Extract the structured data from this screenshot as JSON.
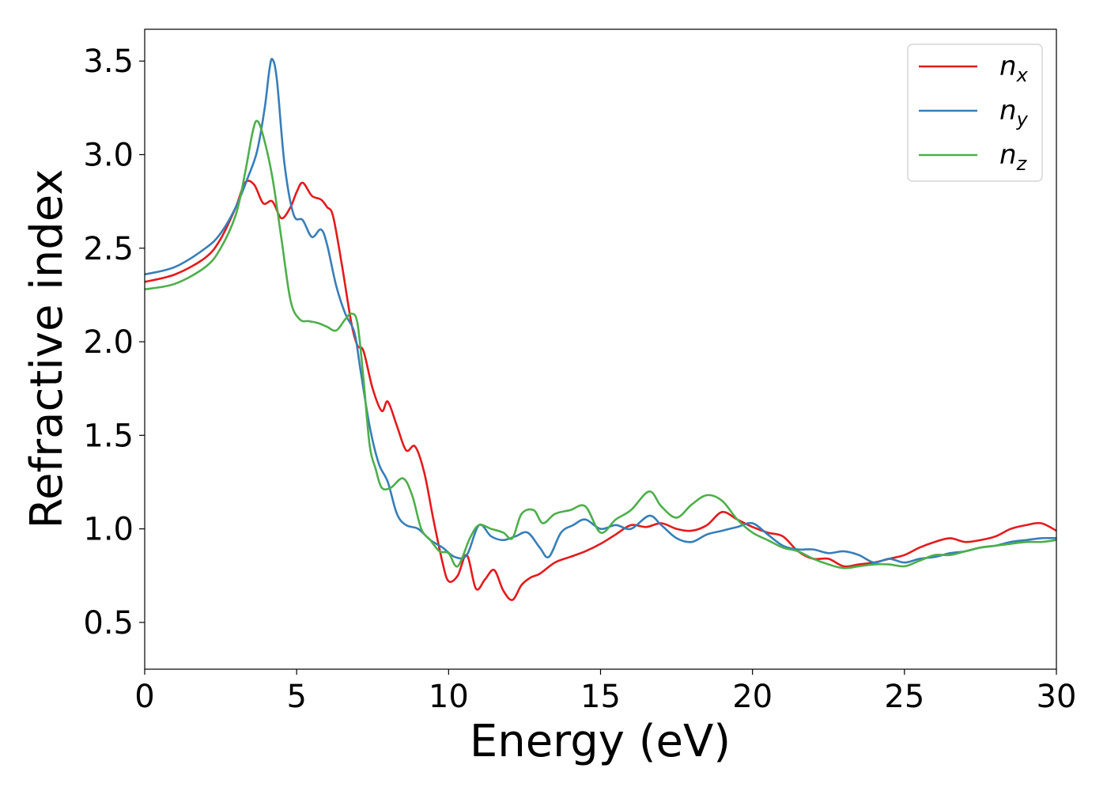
{
  "chart_data": {
    "type": "line",
    "title": "",
    "xlabel": "Energy (eV)",
    "ylabel": "Refractive index",
    "xlim": [
      0,
      30
    ],
    "ylim": [
      0.25,
      3.67
    ],
    "xticks": [
      0,
      5,
      10,
      15,
      20,
      25,
      30
    ],
    "xtick_labels": [
      "0",
      "5",
      "10",
      "15",
      "20",
      "25",
      "30"
    ],
    "yticks": [
      0.5,
      1.0,
      1.5,
      2.0,
      2.5,
      3.0,
      3.5
    ],
    "ytick_labels": [
      "0.5",
      "1.0",
      "1.5",
      "2.0",
      "2.5",
      "3.0",
      "3.5"
    ],
    "grid": false,
    "legend_position": "top-right",
    "series": [
      {
        "name": "n",
        "subscript": "x",
        "color": "#e41a1c",
        "x": [
          0,
          1,
          2,
          2.5,
          3,
          3.3,
          3.6,
          3.9,
          4.2,
          4.5,
          4.8,
          5.0,
          5.2,
          5.5,
          5.8,
          6.0,
          6.2,
          6.5,
          6.8,
          7.0,
          7.2,
          7.5,
          7.8,
          8.0,
          8.3,
          8.6,
          8.9,
          9.2,
          9.5,
          9.8,
          10.0,
          10.3,
          10.6,
          10.9,
          11.2,
          11.5,
          11.8,
          12.1,
          12.4,
          12.7,
          13.0,
          13.5,
          14.0,
          14.5,
          15.0,
          15.5,
          16.0,
          16.5,
          17.0,
          17.5,
          18.0,
          18.5,
          19.0,
          19.5,
          20.0,
          20.5,
          21.0,
          21.5,
          22.0,
          22.5,
          23.0,
          23.5,
          24.0,
          24.5,
          25.0,
          25.5,
          26.0,
          26.5,
          27.0,
          27.5,
          28.0,
          28.5,
          29.0,
          29.5,
          30.0
        ],
        "y": [
          2.32,
          2.36,
          2.45,
          2.55,
          2.72,
          2.85,
          2.84,
          2.74,
          2.75,
          2.66,
          2.72,
          2.8,
          2.85,
          2.78,
          2.76,
          2.72,
          2.67,
          2.4,
          2.1,
          1.98,
          1.95,
          1.75,
          1.63,
          1.68,
          1.55,
          1.42,
          1.44,
          1.3,
          1.05,
          0.82,
          0.72,
          0.75,
          0.86,
          0.68,
          0.73,
          0.78,
          0.67,
          0.62,
          0.7,
          0.74,
          0.76,
          0.82,
          0.85,
          0.88,
          0.92,
          0.97,
          1.02,
          1.01,
          1.03,
          1.0,
          0.99,
          1.02,
          1.09,
          1.05,
          1.01,
          0.98,
          0.96,
          0.88,
          0.84,
          0.84,
          0.8,
          0.81,
          0.82,
          0.84,
          0.86,
          0.9,
          0.93,
          0.95,
          0.93,
          0.94,
          0.96,
          1.0,
          1.02,
          1.03,
          0.99
        ]
      },
      {
        "name": "n",
        "subscript": "y",
        "color": "#377eb8",
        "x": [
          0,
          1,
          2,
          2.5,
          3,
          3.4,
          3.7,
          3.95,
          4.1,
          4.2,
          4.35,
          4.6,
          4.9,
          5.2,
          5.5,
          5.8,
          6.0,
          6.3,
          6.6,
          6.9,
          7.1,
          7.4,
          7.7,
          8.0,
          8.3,
          8.6,
          9.0,
          9.4,
          9.8,
          10.2,
          10.6,
          11.0,
          11.4,
          11.8,
          12.2,
          12.6,
          13.0,
          13.3,
          13.7,
          14.1,
          14.5,
          15.0,
          15.5,
          16.0,
          16.6,
          17.0,
          17.5,
          18.0,
          18.5,
          19.0,
          19.5,
          20.0,
          20.5,
          21.0,
          21.5,
          22.0,
          22.5,
          23.0,
          23.5,
          24.0,
          24.5,
          25.0,
          25.5,
          26.0,
          26.5,
          27.0,
          27.5,
          28.0,
          28.5,
          29.0,
          29.5,
          30.0
        ],
        "y": [
          2.36,
          2.4,
          2.5,
          2.58,
          2.72,
          2.88,
          3.02,
          3.25,
          3.45,
          3.51,
          3.4,
          2.95,
          2.68,
          2.65,
          2.56,
          2.6,
          2.52,
          2.3,
          2.15,
          2.05,
          1.85,
          1.55,
          1.35,
          1.25,
          1.08,
          1.02,
          1.0,
          0.94,
          0.9,
          0.85,
          0.86,
          1.02,
          0.96,
          0.94,
          0.96,
          0.98,
          0.9,
          0.85,
          0.98,
          1.02,
          1.05,
          1.0,
          1.02,
          1.0,
          1.07,
          1.02,
          0.95,
          0.93,
          0.97,
          0.99,
          1.01,
          1.03,
          0.97,
          0.91,
          0.89,
          0.89,
          0.87,
          0.88,
          0.86,
          0.82,
          0.84,
          0.82,
          0.84,
          0.85,
          0.87,
          0.88,
          0.9,
          0.91,
          0.93,
          0.94,
          0.95,
          0.95
        ]
      },
      {
        "name": "n",
        "subscript": "z",
        "color": "#4daf4a",
        "x": [
          0,
          1,
          2,
          2.5,
          3,
          3.3,
          3.55,
          3.7,
          3.9,
          4.2,
          4.5,
          4.8,
          5.1,
          5.4,
          5.7,
          6.0,
          6.3,
          6.6,
          6.8,
          7.0,
          7.2,
          7.4,
          7.6,
          7.8,
          8.1,
          8.5,
          8.8,
          9.1,
          9.4,
          9.7,
          10.0,
          10.3,
          10.7,
          11.0,
          11.4,
          11.8,
          12.1,
          12.4,
          12.8,
          13.1,
          13.5,
          14.0,
          14.5,
          15.0,
          15.5,
          16.0,
          16.6,
          17.0,
          17.5,
          18.0,
          18.5,
          19.0,
          19.5,
          20.0,
          20.5,
          21.0,
          21.5,
          22.0,
          22.5,
          23.0,
          23.5,
          24.0,
          24.5,
          25.0,
          25.5,
          26.0,
          26.5,
          27.0,
          27.5,
          28.0,
          28.5,
          29.0,
          29.5,
          30.0
        ],
        "y": [
          2.28,
          2.31,
          2.4,
          2.5,
          2.68,
          2.9,
          3.12,
          3.18,
          3.1,
          2.88,
          2.55,
          2.22,
          2.12,
          2.11,
          2.1,
          2.08,
          2.06,
          2.12,
          2.15,
          2.1,
          1.8,
          1.45,
          1.32,
          1.22,
          1.22,
          1.27,
          1.18,
          1.0,
          0.94,
          0.88,
          0.87,
          0.8,
          0.95,
          1.02,
          1.0,
          0.98,
          0.95,
          1.08,
          1.1,
          1.03,
          1.08,
          1.1,
          1.12,
          0.98,
          1.05,
          1.1,
          1.2,
          1.12,
          1.06,
          1.13,
          1.18,
          1.15,
          1.05,
          0.98,
          0.94,
          0.9,
          0.88,
          0.84,
          0.81,
          0.79,
          0.8,
          0.81,
          0.81,
          0.8,
          0.83,
          0.86,
          0.86,
          0.88,
          0.9,
          0.91,
          0.92,
          0.93,
          0.93,
          0.94
        ]
      }
    ]
  }
}
